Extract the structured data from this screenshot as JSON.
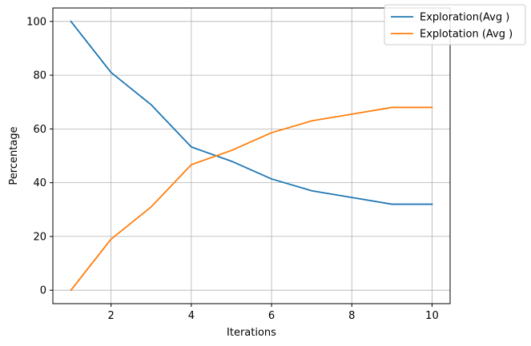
{
  "chart_data": {
    "type": "line",
    "title": "",
    "xlabel": "Iterations",
    "ylabel": "Percentage",
    "xlim": [
      0.55,
      10.45
    ],
    "ylim": [
      -5,
      105
    ],
    "xticks": [
      2,
      4,
      6,
      8,
      10
    ],
    "yticks": [
      0,
      20,
      40,
      60,
      80,
      100
    ],
    "grid": true,
    "legend_position": "top-right",
    "x": [
      1,
      2,
      3,
      4,
      5,
      6,
      7,
      8,
      9,
      10
    ],
    "series": [
      {
        "name": "Exploration(Avg )",
        "color": "#1f77b4",
        "values": [
          100,
          81,
          69,
          53.3,
          48,
          41.4,
          37,
          34.5,
          32,
          32
        ]
      },
      {
        "name": "Explotation (Avg )",
        "color": "#ff7f0e",
        "values": [
          0,
          19,
          31,
          46.7,
          52,
          58.6,
          63,
          65.5,
          68,
          68
        ]
      }
    ]
  }
}
